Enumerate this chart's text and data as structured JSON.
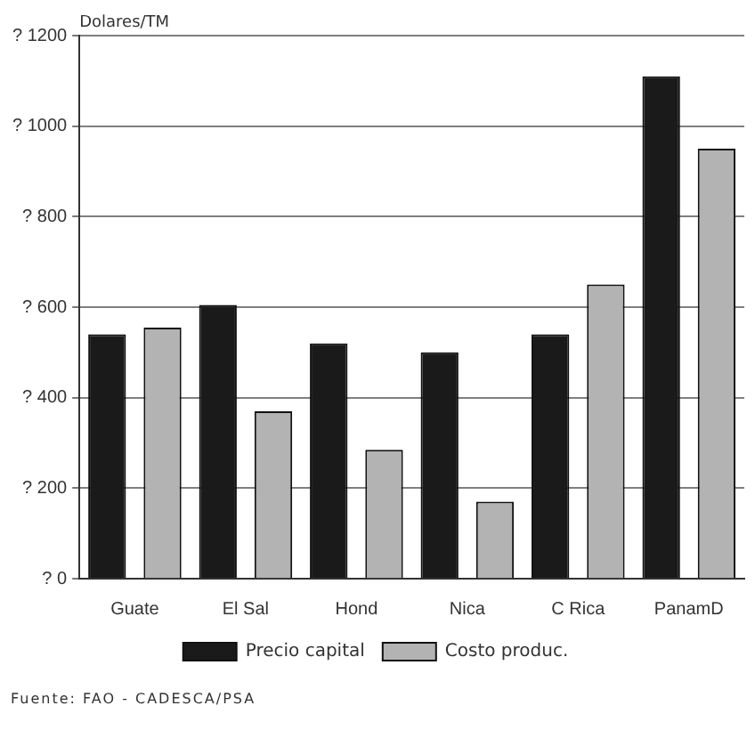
{
  "chart_data": {
    "type": "bar",
    "ylabel": "Dolares/TM",
    "categories": [
      "Guate",
      "El Sal",
      "Hond",
      "Nica",
      "C Rica",
      "PanamD"
    ],
    "series": [
      {
        "name": "Precio capital",
        "color": "#1a1a1a",
        "values": [
          540,
          605,
          520,
          500,
          540,
          1110
        ]
      },
      {
        "name": "Costo produc.",
        "color": "#b3b3b3",
        "values": [
          555,
          370,
          285,
          170,
          650,
          950
        ]
      }
    ],
    "ylim": [
      0,
      1200
    ],
    "yticks": [
      {
        "value": 0,
        "label": "? 0"
      },
      {
        "value": 200,
        "label": "? 200"
      },
      {
        "value": 400,
        "label": "? 400"
      },
      {
        "value": 600,
        "label": "? 600"
      },
      {
        "value": 800,
        "label": "? 800"
      },
      {
        "value": 1000,
        "label": "? 1000"
      },
      {
        "value": 1200,
        "label": "? 1200"
      }
    ],
    "grid": "y",
    "legend": "bottom",
    "annotations": [
      "Fuente: FAO - CADESCA/PSA"
    ]
  }
}
